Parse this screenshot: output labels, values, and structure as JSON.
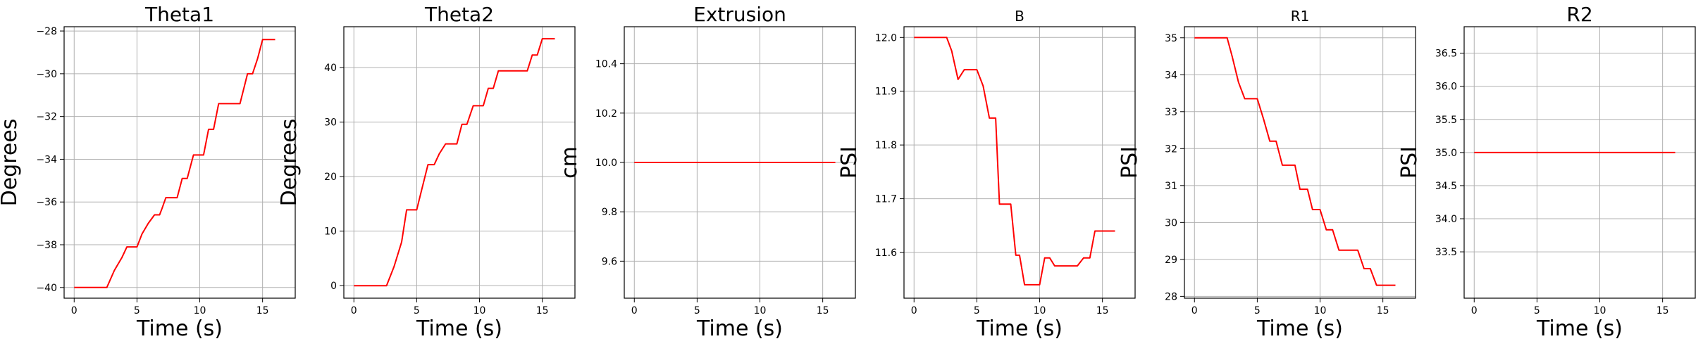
{
  "chart_data": [
    {
      "type": "line",
      "title": "Theta1",
      "xlabel": "Time (s)",
      "ylabel": "Degrees",
      "xlim": [
        -0.8,
        17.6
      ],
      "ylim": [
        -40.5,
        -27.8
      ],
      "xticks": [
        0,
        5,
        10,
        15
      ],
      "yticks": [
        -40,
        -38,
        -36,
        -34,
        -32,
        -30,
        -28
      ],
      "grid": true,
      "color": "#ff0000",
      "x": [
        0,
        1,
        2,
        2.6,
        3.2,
        3.8,
        4.2,
        5.0,
        5.4,
        5.9,
        6.4,
        6.8,
        7.0,
        7.3,
        7.8,
        8.2,
        8.6,
        9.0,
        9.5,
        10.3,
        10.7,
        11.1,
        11.5,
        12.0,
        12.6,
        13.2,
        13.8,
        14.2,
        14.6,
        15.0,
        15.4,
        15.9,
        16.0
      ],
      "y": [
        -40,
        -40,
        -40,
        -40,
        -39.2,
        -38.6,
        -38.1,
        -38.1,
        -37.5,
        -37.0,
        -36.6,
        -36.6,
        -36.3,
        -35.8,
        -35.8,
        -35.8,
        -34.9,
        -34.9,
        -33.8,
        -33.8,
        -32.6,
        -32.6,
        -31.4,
        -31.4,
        -31.4,
        -31.4,
        -30.0,
        -30.0,
        -29.3,
        -28.4,
        -28.4,
        -28.4,
        -28.4
      ]
    },
    {
      "type": "line",
      "title": "Theta2",
      "xlabel": "Time (s)",
      "ylabel": "Degrees",
      "xlim": [
        -0.8,
        17.6
      ],
      "ylim": [
        -2.3,
        47.5
      ],
      "xticks": [
        0,
        5,
        10,
        15
      ],
      "yticks": [
        0,
        10,
        20,
        30,
        40
      ],
      "grid": true,
      "color": "#ff0000",
      "x": [
        0,
        1,
        2,
        2.6,
        3.2,
        3.8,
        4.2,
        5.0,
        5.4,
        5.9,
        6.4,
        6.8,
        7.3,
        7.8,
        8.2,
        8.6,
        9.0,
        9.5,
        10.3,
        10.7,
        11.1,
        11.5,
        12.0,
        12.6,
        13.2,
        13.8,
        14.2,
        14.6,
        15.0,
        15.4,
        15.9,
        16.0
      ],
      "y": [
        0,
        0,
        0,
        0,
        3.5,
        8.0,
        13.9,
        13.9,
        17.6,
        22.2,
        22.2,
        24.2,
        26.0,
        26.0,
        26.0,
        29.6,
        29.6,
        33.0,
        33.0,
        36.2,
        36.2,
        39.4,
        39.4,
        39.4,
        39.4,
        39.4,
        42.3,
        42.3,
        45.3,
        45.3,
        45.3,
        45.3
      ]
    },
    {
      "type": "line",
      "title": "Extrusion",
      "xlabel": "Time (s)",
      "ylabel": "cm",
      "xlim": [
        -0.8,
        17.6
      ],
      "ylim": [
        9.45,
        10.55
      ],
      "xticks": [
        0,
        5,
        10,
        15
      ],
      "yticks": [
        9.6,
        9.8,
        10.0,
        10.2,
        10.4
      ],
      "yticklabels": [
        "9.6",
        "9.8",
        "10.0",
        "10.2",
        "10.4"
      ],
      "grid": true,
      "color": "#ff0000",
      "x": [
        0,
        16
      ],
      "y": [
        10.0,
        10.0
      ]
    },
    {
      "type": "line",
      "title": "B",
      "xlabel": "Time (s)",
      "ylabel": "PSI",
      "xlim": [
        -0.8,
        17.6
      ],
      "ylim": [
        11.515,
        12.02
      ],
      "xticks": [
        0,
        5,
        10,
        15
      ],
      "yticks": [
        11.6,
        11.7,
        11.8,
        11.9,
        12.0
      ],
      "yticklabels": [
        "11.6",
        "11.7",
        "11.8",
        "11.9",
        "12.0"
      ],
      "grid": true,
      "color": "#ff0000",
      "x": [
        0,
        1,
        2,
        2.6,
        3.0,
        3.5,
        4.0,
        4.5,
        5.0,
        5.5,
        6.0,
        6.5,
        6.8,
        7.3,
        7.7,
        8.1,
        8.4,
        8.8,
        9.2,
        9.6,
        10.0,
        10.4,
        10.8,
        11.2,
        11.6,
        12.0,
        12.5,
        13.0,
        13.5,
        14.0,
        14.4,
        15.0,
        15.4,
        16.0
      ],
      "y": [
        12.0,
        12.0,
        12.0,
        12.0,
        11.975,
        11.922,
        11.94,
        11.94,
        11.94,
        11.91,
        11.85,
        11.85,
        11.69,
        11.69,
        11.69,
        11.595,
        11.595,
        11.54,
        11.54,
        11.54,
        11.54,
        11.59,
        11.59,
        11.575,
        11.575,
        11.575,
        11.575,
        11.575,
        11.59,
        11.59,
        11.64,
        11.64,
        11.64,
        11.64
      ]
    },
    {
      "type": "line",
      "title": "R1",
      "xlabel": "Time (s)",
      "ylabel": "PSI",
      "xlim": [
        -0.8,
        17.6
      ],
      "ylim": [
        27.95,
        35.3
      ],
      "xticks": [
        0,
        5,
        10,
        15
      ],
      "yticks": [
        28,
        29,
        30,
        31,
        32,
        33,
        34,
        35
      ],
      "grid": true,
      "color": "#ff0000",
      "x": [
        0,
        1,
        2,
        2.6,
        3.0,
        3.5,
        4.0,
        4.5,
        5.0,
        5.5,
        6.0,
        6.5,
        7.0,
        7.4,
        8.0,
        8.4,
        9.0,
        9.4,
        10.0,
        10.5,
        11.0,
        11.5,
        12.0,
        12.5,
        13.0,
        13.5,
        14.0,
        14.5,
        15.0,
        15.5,
        16.0
      ],
      "y": [
        35.0,
        35.0,
        35.0,
        35.0,
        34.5,
        33.8,
        33.35,
        33.35,
        33.35,
        32.8,
        32.2,
        32.2,
        31.55,
        31.55,
        31.55,
        30.9,
        30.9,
        30.35,
        30.35,
        29.8,
        29.8,
        29.25,
        29.25,
        29.25,
        29.25,
        28.75,
        28.75,
        28.3,
        28.3,
        28.3,
        28.3
      ]
    },
    {
      "type": "line",
      "title": "R2",
      "xlabel": "Time (s)",
      "ylabel": "PSI",
      "xlim": [
        -0.8,
        17.6
      ],
      "ylim": [
        32.8,
        36.9
      ],
      "xticks": [
        0,
        5,
        10,
        15
      ],
      "yticks": [
        33.5,
        34.0,
        34.5,
        35.0,
        35.5,
        36.0,
        36.5
      ],
      "yticklabels": [
        "33.5",
        "34.0",
        "34.5",
        "35.0",
        "35.5",
        "36.0",
        "36.5"
      ],
      "grid": true,
      "color": "#ff0000",
      "x": [
        0,
        16
      ],
      "y": [
        35.0,
        35.0
      ]
    }
  ]
}
